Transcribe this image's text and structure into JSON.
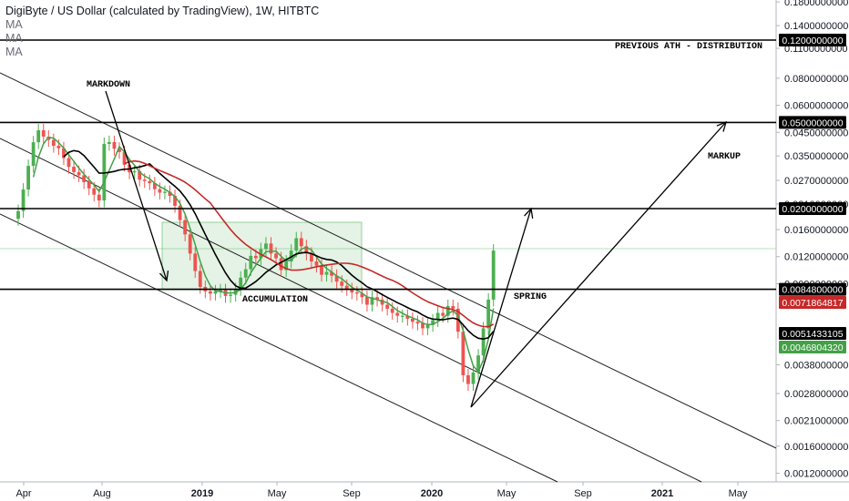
{
  "chart_data": {
    "type": "candlestick",
    "title": "DigiByte / US Dollar (calculated by TradingView), 1W, HITBTC",
    "legend": [
      "MA",
      "MA",
      "MA"
    ],
    "x_ticks": [
      "Apr",
      "Aug",
      "2019",
      "May",
      "Sep",
      "2020",
      "May",
      "Sep",
      "2021",
      "May"
    ],
    "y_ticks": [
      "0.1800000000",
      "0.1400000000",
      "0.1100000000",
      "0.0800000000",
      "0.0600000000",
      "0.0450000000",
      "0.0350000000",
      "0.0270000000",
      "0.0210000000",
      "0.0160000000",
      "0.0120000000",
      "0.0090000000",
      "0.0038000000",
      "0.0028000000",
      "0.0021000000",
      "0.0016000000",
      "0.0012000000"
    ],
    "y_scale": "log",
    "horizontal_levels": [
      {
        "value": 0.12,
        "label": "0.1200000000"
      },
      {
        "value": 0.05,
        "label": "0.0500000000"
      },
      {
        "value": 0.02,
        "label": "0.0200000000"
      },
      {
        "value": 0.00848,
        "label": "0.0084800000"
      }
    ],
    "price_badges": [
      {
        "label": "0.0071864817",
        "color": "#c62828"
      },
      {
        "label": "0.0051433105",
        "color": "#000000"
      },
      {
        "label": "0.0046804320",
        "color": "#43a047"
      }
    ],
    "annotations": [
      "PREVIOUS ATH - DISTRIBUTION",
      "MARKDOWN",
      "MARKUP",
      "ACCUMULATION",
      "SPRING"
    ],
    "candle_closes": [
      0.0195,
      0.0245,
      0.0315,
      0.0405,
      0.046,
      0.043,
      0.0415,
      0.039,
      0.038,
      0.0342,
      0.0312,
      0.0295,
      0.0285,
      0.0265,
      0.0248,
      0.0232,
      0.0218,
      0.0398,
      0.0406,
      0.0378,
      0.0365,
      0.0319,
      0.0294,
      0.0298,
      0.0272,
      0.0268,
      0.0262,
      0.0246,
      0.0237,
      0.0239,
      0.0229,
      0.0206,
      0.0177,
      0.0152,
      0.0124,
      0.0103,
      0.0087,
      0.0083,
      0.0081,
      0.0083,
      0.0084,
      0.0079,
      0.008,
      0.0085,
      0.0096,
      0.0105,
      0.0121,
      0.0118,
      0.013,
      0.0138,
      0.0124,
      0.0118,
      0.0104,
      0.0114,
      0.0128,
      0.0146,
      0.0134,
      0.0124,
      0.0114,
      0.0109,
      0.0099,
      0.0102,
      0.0098,
      0.0092,
      0.0088,
      0.0085,
      0.0082,
      0.0081,
      0.0078,
      0.0072,
      0.0078,
      0.0076,
      0.0072,
      0.0069,
      0.0066,
      0.0064,
      0.0064,
      0.0062,
      0.006,
      0.0059,
      0.0056,
      0.0058,
      0.0061,
      0.0066,
      0.0064,
      0.0071,
      0.0069,
      0.0054,
      0.0034,
      0.0031,
      0.0035,
      0.0042,
      0.0056,
      0.0076,
      0.0128
    ],
    "ma_series": [
      {
        "color": "#43a047"
      },
      {
        "color": "#000000"
      },
      {
        "color": "#c62828"
      }
    ]
  }
}
